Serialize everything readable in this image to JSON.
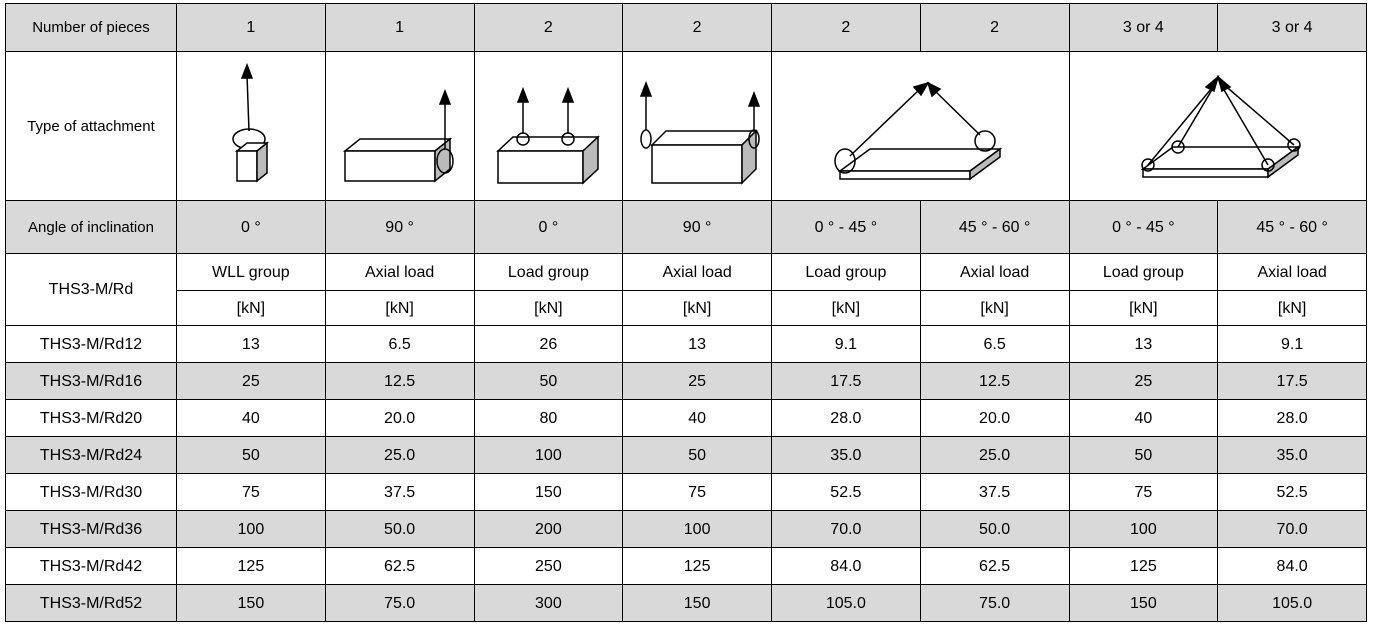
{
  "table": {
    "pieces": {
      "label": "Number of pieces",
      "values": [
        "1",
        "1",
        "2",
        "2",
        "2",
        "2",
        "3 or 4",
        "3 or 4"
      ]
    },
    "attachment": {
      "label": "Type of attachment"
    },
    "angle": {
      "label": "Angle of inclination",
      "values": [
        "0 °",
        "90 °",
        "0 °",
        "90 °",
        "0 ° - 45 °",
        "45 ° - 60 °",
        "0 ° - 45 °",
        "45 ° - 60 °"
      ]
    },
    "product": {
      "label": "THS3-M/Rd",
      "load_types": [
        "WLL group",
        "Axial load",
        "Load group",
        "Axial load",
        "Load group",
        "Axial load",
        "Load group",
        "Axial load"
      ],
      "units": [
        "[kN]",
        "[kN]",
        "[kN]",
        "[kN]",
        "[kN]",
        "[kN]",
        "[kN]",
        "[kN]"
      ]
    },
    "rows": [
      {
        "name": "THS3-M/Rd12",
        "values": [
          "13",
          "6.5",
          "26",
          "13",
          "9.1",
          "6.5",
          "13",
          "9.1"
        ]
      },
      {
        "name": "THS3-M/Rd16",
        "values": [
          "25",
          "12.5",
          "50",
          "25",
          "17.5",
          "12.5",
          "25",
          "17.5"
        ]
      },
      {
        "name": "THS3-M/Rd20",
        "values": [
          "40",
          "20.0",
          "80",
          "40",
          "28.0",
          "20.0",
          "40",
          "28.0"
        ]
      },
      {
        "name": "THS3-M/Rd24",
        "values": [
          "50",
          "25.0",
          "100",
          "50",
          "35.0",
          "25.0",
          "50",
          "35.0"
        ]
      },
      {
        "name": "THS3-M/Rd30",
        "values": [
          "75",
          "37.5",
          "150",
          "75",
          "52.5",
          "37.5",
          "75",
          "52.5"
        ]
      },
      {
        "name": "THS3-M/Rd36",
        "values": [
          "100",
          "50.0",
          "200",
          "100",
          "70.0",
          "50.0",
          "100",
          "70.0"
        ]
      },
      {
        "name": "THS3-M/Rd42",
        "values": [
          "125",
          "62.5",
          "250",
          "125",
          "84.0",
          "62.5",
          "125",
          "84.0"
        ]
      },
      {
        "name": "THS3-M/Rd52",
        "values": [
          "150",
          "75.0",
          "300",
          "150",
          "105.0",
          "75.0",
          "150",
          "105.0"
        ]
      }
    ]
  }
}
